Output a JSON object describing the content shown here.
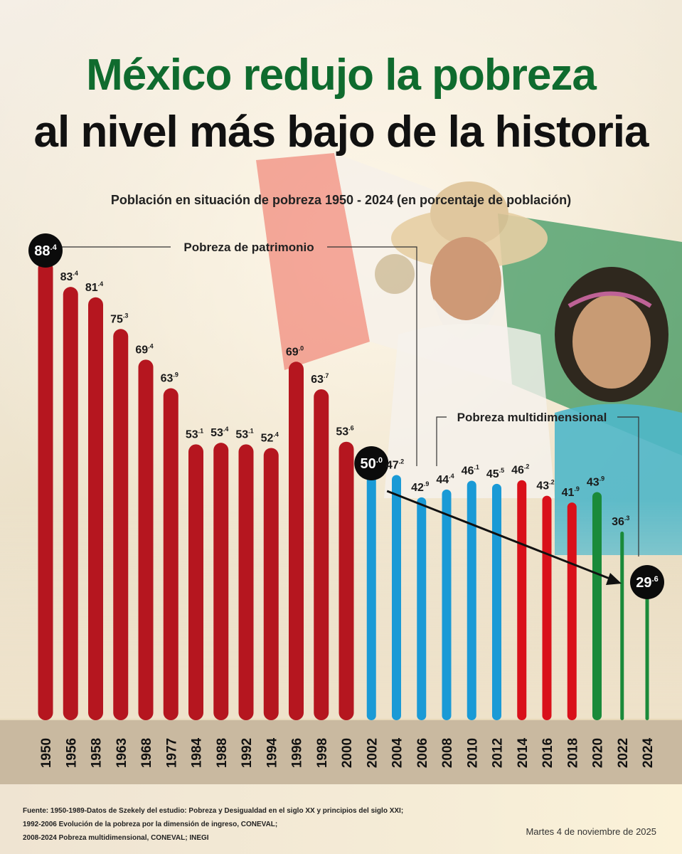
{
  "title_line1": "México redujo la pobreza",
  "title_line2": "al nivel más bajo de la historia",
  "subtitle": "Población en situación de pobreza 1950 - 2024 (en porcentaje de población)",
  "colors": {
    "title_green": "#0f6b2e",
    "patrimonio": "#b5161f",
    "multi_blue": "#1a9ad6",
    "multi_red": "#d9101a",
    "multi_green": "#1a8a3a"
  },
  "chart_data": {
    "type": "bar",
    "categories": [
      "1950",
      "1956",
      "1958",
      "1963",
      "1968",
      "1977",
      "1984",
      "1988",
      "1992",
      "1994",
      "1996",
      "1998",
      "2000",
      "2002",
      "2004",
      "2006",
      "2008",
      "2010",
      "2012",
      "2014",
      "2016",
      "2018",
      "2020",
      "2022",
      "2024"
    ],
    "values": [
      88.4,
      83.4,
      81.4,
      75.3,
      69.4,
      63.9,
      53.1,
      53.4,
      53.1,
      52.4,
      69.0,
      63.7,
      53.6,
      50.0,
      47.2,
      42.9,
      44.4,
      46.1,
      45.5,
      46.2,
      43.2,
      41.9,
      43.9,
      36.3,
      29.6
    ],
    "labels": [
      {
        "main": "88",
        "dec": ".4"
      },
      {
        "main": "83",
        "dec": ".4"
      },
      {
        "main": "81",
        "dec": ".4"
      },
      {
        "main": "75",
        "dec": ".3"
      },
      {
        "main": "69",
        "dec": ".4"
      },
      {
        "main": "63",
        "dec": ".9"
      },
      {
        "main": "53",
        "dec": ".1"
      },
      {
        "main": "53",
        "dec": ".4"
      },
      {
        "main": "53",
        "dec": ".1"
      },
      {
        "main": "52",
        "dec": ".4"
      },
      {
        "main": "69",
        "dec": ".0"
      },
      {
        "main": "63",
        "dec": ".7"
      },
      {
        "main": "53",
        "dec": ".6"
      },
      {
        "main": "50",
        "dec": ".0"
      },
      {
        "main": "47",
        "dec": ".2"
      },
      {
        "main": "42",
        "dec": ".9"
      },
      {
        "main": "44",
        "dec": ".4"
      },
      {
        "main": "46",
        "dec": ".1"
      },
      {
        "main": "45",
        "dec": ".5"
      },
      {
        "main": "46",
        "dec": ".2"
      },
      {
        "main": "43",
        "dec": ".2"
      },
      {
        "main": "41",
        "dec": ".9"
      },
      {
        "main": "43",
        "dec": ".9"
      },
      {
        "main": "36",
        "dec": ".3"
      },
      {
        "main": "29",
        "dec": ".6"
      }
    ],
    "bar_colors": [
      "patrimonio",
      "patrimonio",
      "patrimonio",
      "patrimonio",
      "patrimonio",
      "patrimonio",
      "patrimonio",
      "patrimonio",
      "patrimonio",
      "patrimonio",
      "patrimonio",
      "patrimonio",
      "patrimonio",
      "multi_blue",
      "multi_blue",
      "multi_blue",
      "multi_blue",
      "multi_blue",
      "multi_blue",
      "multi_red",
      "multi_red",
      "multi_red",
      "multi_green",
      "multi_green",
      "multi_green"
    ],
    "highlighted": [
      "1950",
      "2002",
      "2024"
    ],
    "annotations": [
      {
        "text": "Pobreza de patrimonio"
      },
      {
        "text": "Pobreza multidimensional"
      }
    ],
    "trend_arrow": {
      "from": "2002",
      "to": "2024"
    }
  },
  "sources": [
    "Fuente: 1950-1989-Datos de Szekely del estudio: Pobreza y Desigualdad en el siglo XX y principios del siglo XXI;",
    "1992-2006 Evolución de la pobreza por la dimensión de ingreso, CONEVAL;",
    "2008-2024 Pobreza multidimensional, CONEVAL; INEGI"
  ],
  "date": "Martes 4 de noviembre de 2025"
}
